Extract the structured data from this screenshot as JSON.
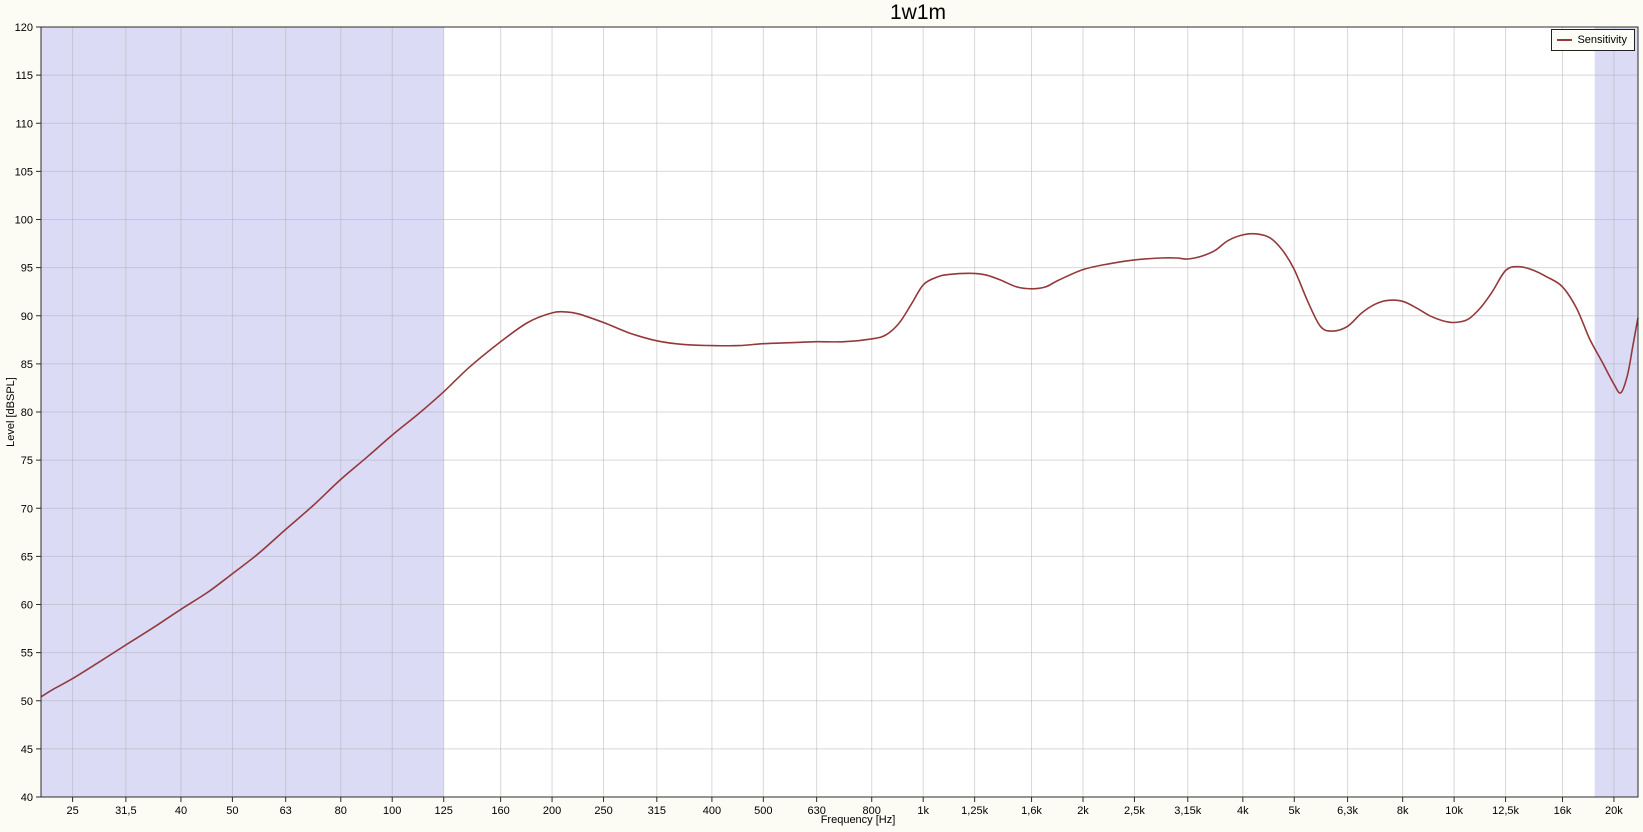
{
  "window": {
    "background": "#FCFCF4"
  },
  "chart_data": {
    "type": "line",
    "title": "1w1m",
    "xlabel": "Frequency [Hz]",
    "ylabel": "Level [dBSPL]",
    "x_scale": "log",
    "x_range_hz": [
      21.8,
      22200
    ],
    "ylim": [
      40,
      120
    ],
    "grid": true,
    "frame_color": "#2B2B2B",
    "grid_color": "#AAAAAA",
    "y_ticks": [
      {
        "value": 120,
        "label": "120"
      },
      {
        "value": 115,
        "label": "115"
      },
      {
        "value": 110,
        "label": "110"
      },
      {
        "value": 105,
        "label": "105"
      },
      {
        "value": 100,
        "label": "100"
      },
      {
        "value": 95,
        "label": "95"
      },
      {
        "value": 90,
        "label": "90"
      },
      {
        "value": 85,
        "label": "85"
      },
      {
        "value": 80,
        "label": "80"
      },
      {
        "value": 75,
        "label": "75"
      },
      {
        "value": 70,
        "label": "70"
      },
      {
        "value": 65,
        "label": "65"
      },
      {
        "value": 60,
        "label": "60"
      },
      {
        "value": 55,
        "label": "55"
      },
      {
        "value": 50,
        "label": "50"
      },
      {
        "value": 45,
        "label": "45"
      },
      {
        "value": 40,
        "label": "40"
      }
    ],
    "x_ticks": [
      {
        "hz": 25,
        "label": "25"
      },
      {
        "hz": 31.5,
        "label": "31,5"
      },
      {
        "hz": 40,
        "label": "40"
      },
      {
        "hz": 50,
        "label": "50"
      },
      {
        "hz": 63,
        "label": "63"
      },
      {
        "hz": 80,
        "label": "80"
      },
      {
        "hz": 100,
        "label": "100"
      },
      {
        "hz": 125,
        "label": "125"
      },
      {
        "hz": 160,
        "label": "160"
      },
      {
        "hz": 200,
        "label": "200"
      },
      {
        "hz": 250,
        "label": "250"
      },
      {
        "hz": 315,
        "label": "315"
      },
      {
        "hz": 400,
        "label": "400"
      },
      {
        "hz": 500,
        "label": "500"
      },
      {
        "hz": 630,
        "label": "630"
      },
      {
        "hz": 800,
        "label": "800"
      },
      {
        "hz": 1000,
        "label": "1k"
      },
      {
        "hz": 1250,
        "label": "1,25k"
      },
      {
        "hz": 1600,
        "label": "1,6k"
      },
      {
        "hz": 2000,
        "label": "2k"
      },
      {
        "hz": 2500,
        "label": "2,5k"
      },
      {
        "hz": 3150,
        "label": "3,15k"
      },
      {
        "hz": 4000,
        "label": "4k"
      },
      {
        "hz": 5000,
        "label": "5k"
      },
      {
        "hz": 6300,
        "label": "6,3k"
      },
      {
        "hz": 8000,
        "label": "8k"
      },
      {
        "hz": 10000,
        "label": "10k"
      },
      {
        "hz": 12500,
        "label": "12,5k"
      },
      {
        "hz": 16000,
        "label": "16k"
      },
      {
        "hz": 20000,
        "label": "20k"
      }
    ],
    "legend": {
      "position": "top-right",
      "entries": [
        {
          "label": "Sensitivity",
          "color": "#94393B"
        }
      ]
    },
    "shaded_bands": [
      {
        "from_hz": 21.8,
        "to_hz": 125,
        "color": "#DBDBF6"
      },
      {
        "from_hz": 18400,
        "to_hz": 22200,
        "color": "#DBDBF6"
      }
    ],
    "series": [
      {
        "name": "Sensitivity",
        "color": "#94393B",
        "points_hz_db": [
          [
            21.8,
            50.4
          ],
          [
            23,
            51.2
          ],
          [
            25,
            52.3
          ],
          [
            28,
            54.0
          ],
          [
            31.5,
            55.8
          ],
          [
            35.5,
            57.6
          ],
          [
            40,
            59.5
          ],
          [
            45,
            61.3
          ],
          [
            50,
            63.2
          ],
          [
            56,
            65.3
          ],
          [
            63,
            67.8
          ],
          [
            71,
            70.3
          ],
          [
            80,
            73.0
          ],
          [
            90,
            75.4
          ],
          [
            100,
            77.6
          ],
          [
            112,
            79.8
          ],
          [
            125,
            82.1
          ],
          [
            140,
            84.7
          ],
          [
            160,
            87.3
          ],
          [
            180,
            89.3
          ],
          [
            200,
            90.3
          ],
          [
            212,
            90.4
          ],
          [
            224,
            90.2
          ],
          [
            250,
            89.3
          ],
          [
            280,
            88.2
          ],
          [
            315,
            87.4
          ],
          [
            355,
            87.0
          ],
          [
            400,
            86.9
          ],
          [
            450,
            86.9
          ],
          [
            500,
            87.1
          ],
          [
            560,
            87.2
          ],
          [
            630,
            87.3
          ],
          [
            710,
            87.3
          ],
          [
            800,
            87.6
          ],
          [
            850,
            88.0
          ],
          [
            900,
            89.2
          ],
          [
            950,
            91.2
          ],
          [
            1000,
            93.2
          ],
          [
            1060,
            94.0
          ],
          [
            1120,
            94.3
          ],
          [
            1250,
            94.4
          ],
          [
            1320,
            94.2
          ],
          [
            1400,
            93.7
          ],
          [
            1500,
            93.0
          ],
          [
            1600,
            92.8
          ],
          [
            1700,
            93.0
          ],
          [
            1800,
            93.7
          ],
          [
            2000,
            94.8
          ],
          [
            2240,
            95.4
          ],
          [
            2500,
            95.8
          ],
          [
            2800,
            96.0
          ],
          [
            3000,
            96.0
          ],
          [
            3150,
            95.9
          ],
          [
            3350,
            96.2
          ],
          [
            3550,
            96.8
          ],
          [
            3750,
            97.8
          ],
          [
            4000,
            98.4
          ],
          [
            4250,
            98.5
          ],
          [
            4500,
            98.1
          ],
          [
            4750,
            96.8
          ],
          [
            5000,
            94.8
          ],
          [
            5300,
            91.5
          ],
          [
            5600,
            88.9
          ],
          [
            5900,
            88.4
          ],
          [
            6300,
            88.9
          ],
          [
            6700,
            90.3
          ],
          [
            7100,
            91.2
          ],
          [
            7500,
            91.6
          ],
          [
            8000,
            91.5
          ],
          [
            8500,
            90.8
          ],
          [
            9000,
            90.0
          ],
          [
            9500,
            89.5
          ],
          [
            10000,
            89.3
          ],
          [
            10600,
            89.6
          ],
          [
            11200,
            90.8
          ],
          [
            11800,
            92.5
          ],
          [
            12500,
            94.7
          ],
          [
            13200,
            95.1
          ],
          [
            14000,
            94.8
          ],
          [
            15000,
            94.0
          ],
          [
            16000,
            93.0
          ],
          [
            17000,
            90.8
          ],
          [
            18000,
            87.6
          ],
          [
            19000,
            85.2
          ],
          [
            20000,
            82.9
          ],
          [
            20600,
            82.0
          ],
          [
            21200,
            83.8
          ],
          [
            21700,
            86.8
          ],
          [
            22200,
            89.8
          ]
        ]
      }
    ]
  }
}
